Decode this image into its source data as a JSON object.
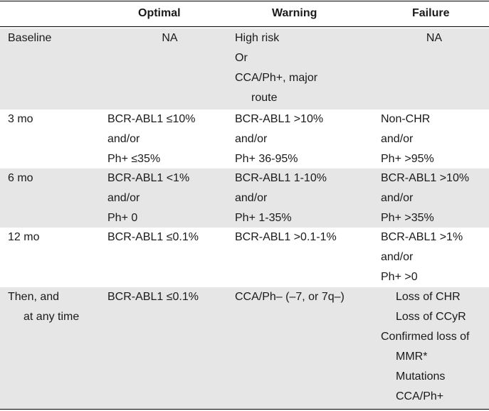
{
  "header": {
    "col1": "",
    "optimal": "Optimal",
    "warning": "Warning",
    "failure": "Failure"
  },
  "rows": [
    {
      "label": [
        "Baseline"
      ],
      "optimal": [
        "NA"
      ],
      "warning": [
        "High risk",
        "Or",
        "CCA/Ph+, major",
        "route"
      ],
      "failure": [
        "NA"
      ]
    },
    {
      "label": [
        "3 mo"
      ],
      "optimal": [
        "BCR-ABL1 ≤10%",
        "and/or",
        "Ph+ ≤35%"
      ],
      "warning": [
        "BCR-ABL1 >10%",
        "and/or",
        "Ph+ 36-95%"
      ],
      "failure": [
        "Non-CHR",
        "and/or",
        "Ph+ >95%"
      ]
    },
    {
      "label": [
        "6 mo"
      ],
      "optimal": [
        "BCR-ABL1 <1%",
        "and/or",
        "Ph+ 0"
      ],
      "warning": [
        "BCR-ABL1 1-10%",
        "and/or",
        "Ph+ 1-35%"
      ],
      "failure": [
        "BCR-ABL1 >10%",
        "and/or",
        "Ph+ >35%"
      ]
    },
    {
      "label": [
        "12 mo"
      ],
      "optimal": [
        "BCR-ABL1 ≤0.1%"
      ],
      "warning": [
        "BCR-ABL1 >0.1-1%"
      ],
      "failure": [
        "BCR-ABL1 >1%",
        "and/or",
        "Ph+ >0"
      ]
    },
    {
      "label": [
        "Then, and",
        "at any time"
      ],
      "optimal": [
        "BCR-ABL1 ≤0.1%"
      ],
      "warning": [
        "CCA/Ph– (–7, or 7q–)"
      ],
      "failure": [
        "Loss of CHR",
        "Loss of CCyR",
        "Confirmed loss of",
        "MMR*",
        "Mutations",
        "CCA/Ph+"
      ]
    }
  ]
}
